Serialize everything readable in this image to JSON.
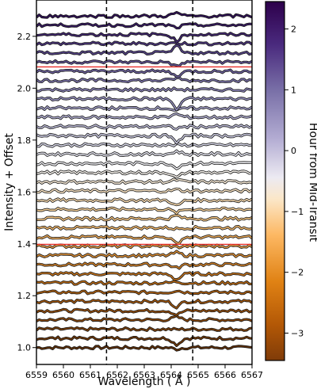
{
  "chart_data": {
    "type": "line",
    "title": "",
    "xlabel": "Wavelength ( Å )",
    "ylabel": "Intensity + Offset",
    "xlim": [
      6559,
      6567
    ],
    "ylim": [
      0.935,
      2.34
    ],
    "xticks": [
      6559,
      6560,
      6561,
      6562,
      6563,
      6564,
      6565,
      6566,
      6567
    ],
    "yticks": [
      1.0,
      1.2,
      1.4,
      1.6,
      1.8,
      2.0,
      2.2
    ],
    "xtick_labels": [
      "6559",
      "6560",
      "6561",
      "6562",
      "6563",
      "6564",
      "6565",
      "6566",
      "6567"
    ],
    "ytick_labels": [
      "1.0",
      "1.2",
      "1.4",
      "1.6",
      "1.8",
      "2.0",
      "2.2"
    ],
    "vlines": [
      6561.6,
      6564.8
    ],
    "reference_lines": [
      {
        "y": 1.398,
        "color": "#e8302a"
      },
      {
        "y": 2.082,
        "color": "#e8302a"
      }
    ],
    "grid": false,
    "colorbar": {
      "label": "Hour from Mid-Transit",
      "range": [
        -3.45,
        2.45
      ],
      "ticks": [
        2,
        1,
        0,
        -1,
        -2,
        -3
      ],
      "tick_labels": [
        "2",
        "1",
        "0",
        "−1",
        "−2",
        "−3"
      ],
      "colormap": "PuOr_r"
    },
    "series_spec": {
      "count": 37,
      "offset_start": 1.0,
      "offset_step": 0.0355,
      "time_start": -3.3,
      "time_end": 2.3,
      "feature_center": 6564.2,
      "feature_note": "dips and spikes near 6564 Å"
    },
    "series": [
      {
        "offset": 1.0,
        "hour": -3.3,
        "line_color": "#5e2e06"
      },
      {
        "offset": 1.036,
        "hour": -3.14,
        "line_color": "#6e3707"
      },
      {
        "offset": 1.071,
        "hour": -2.99,
        "line_color": "#7a3e08"
      },
      {
        "offset": 1.107,
        "hour": -2.83,
        "line_color": "#86450a"
      },
      {
        "offset": 1.142,
        "hour": -2.68,
        "line_color": "#934c0b"
      },
      {
        "offset": 1.178,
        "hour": -2.52,
        "line_color": "#a0550c"
      },
      {
        "offset": 1.213,
        "hour": -2.37,
        "line_color": "#ad5e0e"
      },
      {
        "offset": 1.249,
        "hour": -2.21,
        "line_color": "#b96812"
      },
      {
        "offset": 1.284,
        "hour": -2.06,
        "line_color": "#c4721a"
      },
      {
        "offset": 1.32,
        "hour": -1.9,
        "line_color": "#ce7e26"
      },
      {
        "offset": 1.355,
        "hour": -1.74,
        "line_color": "#d98c34"
      },
      {
        "offset": 1.391,
        "hour": -1.59,
        "line_color": "#e29a45"
      },
      {
        "offset": 1.426,
        "hour": -1.43,
        "line_color": "#eaa858"
      },
      {
        "offset": 1.462,
        "hour": -1.28,
        "line_color": "#f0b76c"
      },
      {
        "offset": 1.497,
        "hour": -1.12,
        "line_color": "#f5c582"
      },
      {
        "offset": 1.533,
        "hour": -0.97,
        "line_color": "#f8d299"
      },
      {
        "offset": 1.568,
        "hour": -0.81,
        "line_color": "#fadcb0"
      },
      {
        "offset": 1.604,
        "hour": -0.66,
        "line_color": "#fbe5c4"
      },
      {
        "offset": 1.639,
        "hour": -0.5,
        "line_color": "#f9ecd8"
      },
      {
        "offset": 1.675,
        "hour": -0.34,
        "line_color": "#f4f0ea"
      },
      {
        "offset": 1.71,
        "hour": -0.19,
        "line_color": "#eeeef2"
      },
      {
        "offset": 1.746,
        "hour": -0.03,
        "line_color": "#e3e3ee"
      },
      {
        "offset": 1.781,
        "hour": 0.12,
        "line_color": "#d7d7e8"
      },
      {
        "offset": 1.817,
        "hour": 0.28,
        "line_color": "#cbcae1"
      },
      {
        "offset": 1.852,
        "hour": 0.43,
        "line_color": "#bebcd9"
      },
      {
        "offset": 1.888,
        "hour": 0.59,
        "line_color": "#b0add0"
      },
      {
        "offset": 1.923,
        "hour": 0.74,
        "line_color": "#a29ec7"
      },
      {
        "offset": 1.959,
        "hour": 0.9,
        "line_color": "#948fbd"
      },
      {
        "offset": 1.994,
        "hour": 1.06,
        "line_color": "#8780b3"
      },
      {
        "offset": 2.03,
        "hour": 1.21,
        "line_color": "#7a71a8"
      },
      {
        "offset": 2.065,
        "hour": 1.37,
        "line_color": "#6d619e"
      },
      {
        "offset": 2.101,
        "hour": 1.52,
        "line_color": "#605193"
      },
      {
        "offset": 2.136,
        "hour": 1.68,
        "line_color": "#544287"
      },
      {
        "offset": 2.172,
        "hour": 1.83,
        "line_color": "#4a337b"
      },
      {
        "offset": 2.207,
        "hour": 1.99,
        "line_color": "#40256f"
      },
      {
        "offset": 2.243,
        "hour": 2.14,
        "line_color": "#371963"
      },
      {
        "offset": 2.278,
        "hour": 2.3,
        "line_color": "#2f0f57"
      }
    ]
  },
  "colors": {
    "outline": "#1a1a1a",
    "vline": "#000000",
    "reference_line": "#e8302a",
    "gradient_top": "#2d004b",
    "gradient_bottom": "#7f3b08"
  }
}
